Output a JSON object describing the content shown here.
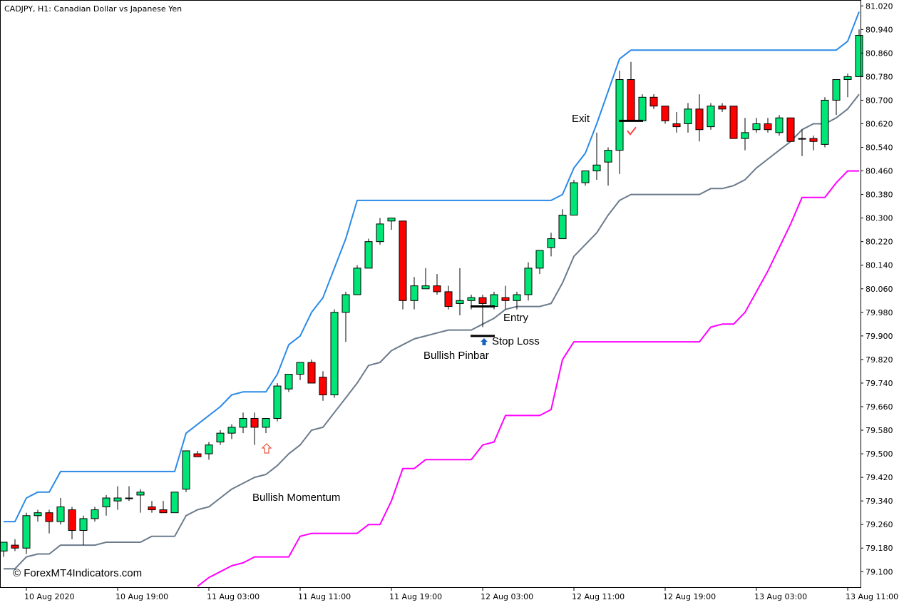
{
  "header": {
    "title": "CADJPY, H1:  Canadian Dollar vs Japanese Yen"
  },
  "watermark": "© ForexMT4Indicators.com",
  "colors": {
    "background": "#ffffff",
    "bull_candle": "#00e676",
    "bear_candle": "#ff0000",
    "wick": "#000000",
    "upper_band": "#2a8ae8",
    "middle_line": "#6b7b8c",
    "lower_band": "#ff00ff",
    "arrow_up": "#e8553a",
    "arrow_blue": "#1565c0",
    "check": "#ff3030"
  },
  "chart_data": {
    "type": "candlestick",
    "symbol": "CADJPY",
    "timeframe": "H1",
    "ylim": [
      79.045,
      81.04
    ],
    "y_ticks": [
      81.02,
      80.94,
      80.86,
      80.78,
      80.7,
      80.62,
      80.54,
      80.46,
      80.38,
      80.3,
      80.22,
      80.14,
      80.06,
      79.98,
      79.9,
      79.82,
      79.74,
      79.66,
      79.58,
      79.5,
      79.42,
      79.34,
      79.26,
      79.18,
      79.1
    ],
    "y_tick_labels": [
      "81.020",
      "80.940",
      "80.860",
      "80.780",
      "80.700",
      "80.620",
      "80.540",
      "80.460",
      "80.380",
      "80.300",
      "80.220",
      "80.140",
      "80.060",
      "79.980",
      "79.900",
      "79.820",
      "79.740",
      "79.660",
      "79.580",
      "79.500",
      "79.420",
      "79.340",
      "79.260",
      "79.180",
      "79.100"
    ],
    "x_ticks": [
      {
        "label": "10 Aug 2020",
        "index": 2
      },
      {
        "label": "10 Aug 19:00",
        "index": 10
      },
      {
        "label": "11 Aug 03:00",
        "index": 18
      },
      {
        "label": "11 Aug 11:00",
        "index": 26
      },
      {
        "label": "11 Aug 19:00",
        "index": 34
      },
      {
        "label": "12 Aug 03:00",
        "index": 42
      },
      {
        "label": "12 Aug 11:00",
        "index": 50
      },
      {
        "label": "12 Aug 19:00",
        "index": 58
      },
      {
        "label": "13 Aug 03:00",
        "index": 66
      },
      {
        "label": "13 Aug 11:00",
        "index": 74
      }
    ],
    "ohlc": [
      [
        79.17,
        79.2,
        79.15,
        79.2
      ],
      [
        79.19,
        79.21,
        79.17,
        79.18
      ],
      [
        79.18,
        79.3,
        79.16,
        79.29
      ],
      [
        79.29,
        79.31,
        79.27,
        79.3
      ],
      [
        79.3,
        79.31,
        79.23,
        79.27
      ],
      [
        79.27,
        79.35,
        79.26,
        79.32
      ],
      [
        79.31,
        79.32,
        79.21,
        79.24
      ],
      [
        79.24,
        79.29,
        79.19,
        79.28
      ],
      [
        79.28,
        79.32,
        79.27,
        79.31
      ],
      [
        79.32,
        79.36,
        79.29,
        79.35
      ],
      [
        79.34,
        79.39,
        79.31,
        79.35
      ],
      [
        79.35,
        79.39,
        79.34,
        79.35
      ],
      [
        79.36,
        79.38,
        79.3,
        79.37
      ],
      [
        79.32,
        79.34,
        79.3,
        79.31
      ],
      [
        79.31,
        79.34,
        79.3,
        79.3
      ],
      [
        79.3,
        79.37,
        79.3,
        79.37
      ],
      [
        79.38,
        79.51,
        79.37,
        79.51
      ],
      [
        79.5,
        79.51,
        79.49,
        79.49
      ],
      [
        79.5,
        79.54,
        79.48,
        79.53
      ],
      [
        79.54,
        79.58,
        79.53,
        79.57
      ],
      [
        79.57,
        79.6,
        79.55,
        79.59
      ],
      [
        79.59,
        79.64,
        79.57,
        79.62
      ],
      [
        79.62,
        79.64,
        79.53,
        79.59
      ],
      [
        79.59,
        79.62,
        79.57,
        79.62
      ],
      [
        79.62,
        79.74,
        79.61,
        79.73
      ],
      [
        79.72,
        79.77,
        79.71,
        79.77
      ],
      [
        79.77,
        79.8,
        79.75,
        79.81
      ],
      [
        79.81,
        79.82,
        79.74,
        79.74
      ],
      [
        79.76,
        79.78,
        79.68,
        79.7
      ],
      [
        79.7,
        79.99,
        79.69,
        79.98
      ],
      [
        79.98,
        80.05,
        79.88,
        80.04
      ],
      [
        80.04,
        80.14,
        80.04,
        80.13
      ],
      [
        80.13,
        80.23,
        80.13,
        80.22
      ],
      [
        80.22,
        80.3,
        80.21,
        80.28
      ],
      [
        80.29,
        80.3,
        80.26,
        80.3
      ],
      [
        80.29,
        80.29,
        79.99,
        80.02
      ],
      [
        80.02,
        80.1,
        79.99,
        80.07
      ],
      [
        80.06,
        80.13,
        80.06,
        80.07
      ],
      [
        80.07,
        80.11,
        80.04,
        80.05
      ],
      [
        80.05,
        80.07,
        79.99,
        80.0
      ],
      [
        80.01,
        80.13,
        79.97,
        80.02
      ],
      [
        80.02,
        80.04,
        79.99,
        80.03
      ],
      [
        80.03,
        80.04,
        79.93,
        80.01
      ],
      [
        80.0,
        80.05,
        79.99,
        80.04
      ],
      [
        80.03,
        80.07,
        79.99,
        80.02
      ],
      [
        80.02,
        80.05,
        79.99,
        80.04
      ],
      [
        80.04,
        80.15,
        80.02,
        80.13
      ],
      [
        80.13,
        80.19,
        80.11,
        80.19
      ],
      [
        80.2,
        80.25,
        80.17,
        80.23
      ],
      [
        80.23,
        80.33,
        80.23,
        80.31
      ],
      [
        80.31,
        80.43,
        80.31,
        80.42
      ],
      [
        80.42,
        80.46,
        80.41,
        80.46
      ],
      [
        80.46,
        80.59,
        80.43,
        80.48
      ],
      [
        80.49,
        80.54,
        80.41,
        80.53
      ],
      [
        80.53,
        80.8,
        80.45,
        80.77
      ],
      [
        80.77,
        80.83,
        80.63,
        80.63
      ],
      [
        80.63,
        80.72,
        80.63,
        80.71
      ],
      [
        80.71,
        80.72,
        80.67,
        80.68
      ],
      [
        80.68,
        80.68,
        80.62,
        80.63
      ],
      [
        80.62,
        80.66,
        80.59,
        80.61
      ],
      [
        80.62,
        80.69,
        80.59,
        80.67
      ],
      [
        80.67,
        80.72,
        80.56,
        80.6
      ],
      [
        80.61,
        80.69,
        80.6,
        80.68
      ],
      [
        80.68,
        80.69,
        80.66,
        80.67
      ],
      [
        80.68,
        80.68,
        80.57,
        80.57
      ],
      [
        80.57,
        80.64,
        80.53,
        80.59
      ],
      [
        80.6,
        80.64,
        80.59,
        80.62
      ],
      [
        80.62,
        80.64,
        80.59,
        80.6
      ],
      [
        80.59,
        80.65,
        80.58,
        80.64
      ],
      [
        80.64,
        80.64,
        80.57,
        80.56
      ],
      [
        80.57,
        80.6,
        80.51,
        80.57
      ],
      [
        80.57,
        80.58,
        80.53,
        80.56
      ],
      [
        80.55,
        80.71,
        80.54,
        80.7
      ],
      [
        80.7,
        80.77,
        80.65,
        80.77
      ],
      [
        80.77,
        80.79,
        80.71,
        80.78
      ],
      [
        80.78,
        80.94,
        80.78,
        80.92
      ]
    ],
    "series": [
      {
        "role": "upper",
        "values": [
          79.27,
          79.27,
          79.35,
          79.37,
          79.37,
          79.44,
          79.44,
          79.44,
          79.44,
          79.44,
          79.44,
          79.44,
          79.44,
          79.44,
          79.44,
          79.44,
          79.57,
          79.6,
          79.63,
          79.66,
          79.7,
          79.71,
          79.71,
          79.71,
          79.77,
          79.87,
          79.9,
          79.98,
          80.03,
          80.13,
          80.23,
          80.36,
          80.36,
          80.36,
          80.36,
          80.36,
          80.36,
          80.36,
          80.36,
          80.36,
          80.36,
          80.36,
          80.36,
          80.36,
          80.36,
          80.36,
          80.36,
          80.36,
          80.36,
          80.38,
          80.47,
          80.52,
          80.62,
          80.73,
          80.84,
          80.87,
          80.87,
          80.87,
          80.87,
          80.87,
          80.87,
          80.87,
          80.87,
          80.87,
          80.87,
          80.87,
          80.87,
          80.87,
          80.87,
          80.87,
          80.87,
          80.87,
          80.87,
          80.87,
          80.9,
          81.0
        ]
      },
      {
        "role": "middle",
        "values": [
          79.11,
          79.11,
          79.15,
          79.16,
          79.16,
          79.19,
          79.19,
          79.19,
          79.19,
          79.2,
          79.2,
          79.2,
          79.2,
          79.22,
          79.22,
          79.22,
          79.29,
          79.31,
          79.32,
          79.35,
          79.38,
          79.4,
          79.42,
          79.43,
          79.46,
          79.5,
          79.53,
          79.58,
          79.59,
          79.64,
          79.69,
          79.74,
          79.8,
          79.81,
          79.85,
          79.87,
          79.89,
          79.9,
          79.91,
          79.92,
          79.92,
          79.92,
          79.94,
          79.96,
          79.99,
          80.0,
          80.0,
          80.0,
          80.01,
          80.08,
          80.17,
          80.21,
          80.25,
          80.31,
          80.36,
          80.38,
          80.38,
          80.38,
          80.38,
          80.38,
          80.38,
          80.38,
          80.4,
          80.4,
          80.41,
          80.43,
          80.47,
          80.5,
          80.53,
          80.56,
          80.6,
          80.62,
          80.62,
          80.64,
          80.67,
          80.72
        ]
      },
      {
        "role": "lower",
        "values": [
          null,
          null,
          null,
          null,
          null,
          null,
          null,
          null,
          null,
          null,
          null,
          null,
          null,
          null,
          null,
          null,
          null,
          79.05,
          79.08,
          79.1,
          79.12,
          79.13,
          79.15,
          79.15,
          79.15,
          79.15,
          79.22,
          79.23,
          79.23,
          79.23,
          79.23,
          79.23,
          79.26,
          79.26,
          79.34,
          79.45,
          79.45,
          79.48,
          79.48,
          79.48,
          79.48,
          79.48,
          79.53,
          79.54,
          79.63,
          79.63,
          79.63,
          79.63,
          79.65,
          79.82,
          79.88,
          79.88,
          79.88,
          79.88,
          79.88,
          79.88,
          79.88,
          79.88,
          79.88,
          79.88,
          79.88,
          79.88,
          79.93,
          79.94,
          79.94,
          79.98,
          80.05,
          80.12,
          80.2,
          80.28,
          80.37,
          80.37,
          80.37,
          80.42,
          80.46,
          80.46
        ]
      }
    ],
    "annotations": {
      "bullish_momentum": "Bullish Momentum",
      "bullish_pinbar": "Bullish Pinbar",
      "entry": "Entry",
      "stop_loss": "Stop Loss",
      "exit": "Exit",
      "entry_price": 80.0,
      "stop_loss_price": 79.9,
      "exit_price": 80.63,
      "up_arrow_index": 23,
      "pinbar_index": 42,
      "exit_index": 55
    }
  }
}
